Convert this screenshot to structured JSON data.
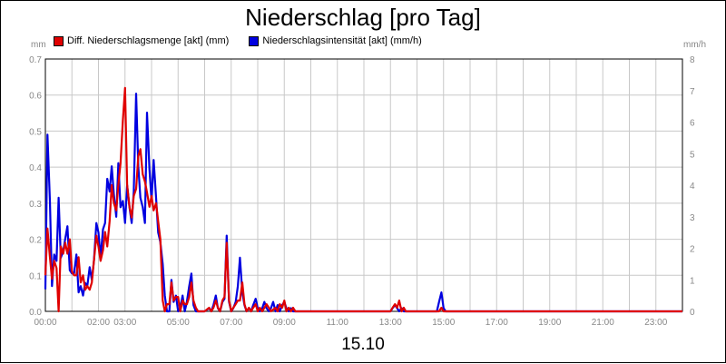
{
  "chart_data": {
    "type": "line",
    "title": "Niederschlag [pro Tag]",
    "xlabel": "15.10",
    "left_axis_unit": "mm",
    "right_axis_unit": "mm/h",
    "grid": true,
    "legend_position": "top-left",
    "x_range_hours": [
      0,
      24
    ],
    "y_left_range": [
      0,
      0.7
    ],
    "y_right_range": [
      0,
      8
    ],
    "x_tick_labels": [
      "00:00",
      "02:00",
      "03:00",
      "05:00",
      "07:00",
      "09:00",
      "11:00",
      "13:00",
      "15:00",
      "17:00",
      "19:00",
      "21:00",
      "23:00"
    ],
    "y_left_tick_labels": [
      "0.0",
      "0.1",
      "0.2",
      "0.3",
      "0.4",
      "0.5",
      "0.6",
      "0.7"
    ],
    "y_right_tick_labels": [
      "0",
      "1",
      "2",
      "3",
      "4",
      "5",
      "6",
      "7",
      "8"
    ],
    "series": [
      {
        "name": "Diff. Niederschlagsmenge [akt] (mm)",
        "color": "#e00000",
        "axis": "left",
        "points": [
          [
            0.0,
            0.1
          ],
          [
            0.08,
            0.23
          ],
          [
            0.17,
            0.15
          ],
          [
            0.25,
            0.09
          ],
          [
            0.33,
            0.14
          ],
          [
            0.42,
            0.12
          ],
          [
            0.5,
            0.0
          ],
          [
            0.58,
            0.18
          ],
          [
            0.67,
            0.16
          ],
          [
            0.75,
            0.19
          ],
          [
            0.83,
            0.16
          ],
          [
            0.92,
            0.2
          ],
          [
            1.0,
            0.11
          ],
          [
            1.08,
            0.1
          ],
          [
            1.17,
            0.1
          ],
          [
            1.25,
            0.15
          ],
          [
            1.33,
            0.08
          ],
          [
            1.42,
            0.1
          ],
          [
            1.5,
            0.06
          ],
          [
            1.58,
            0.07
          ],
          [
            1.67,
            0.06
          ],
          [
            1.75,
            0.08
          ],
          [
            1.83,
            0.14
          ],
          [
            1.92,
            0.21
          ],
          [
            2.0,
            0.18
          ],
          [
            2.08,
            0.14
          ],
          [
            2.17,
            0.17
          ],
          [
            2.25,
            0.22
          ],
          [
            2.33,
            0.18
          ],
          [
            2.42,
            0.25
          ],
          [
            2.5,
            0.35
          ],
          [
            2.58,
            0.3
          ],
          [
            2.67,
            0.28
          ],
          [
            2.75,
            0.35
          ],
          [
            2.83,
            0.41
          ],
          [
            2.92,
            0.53
          ],
          [
            3.0,
            0.62
          ],
          [
            3.08,
            0.35
          ],
          [
            3.17,
            0.29
          ],
          [
            3.25,
            0.26
          ],
          [
            3.33,
            0.32
          ],
          [
            3.42,
            0.34
          ],
          [
            3.5,
            0.43
          ],
          [
            3.58,
            0.45
          ],
          [
            3.67,
            0.38
          ],
          [
            3.75,
            0.36
          ],
          [
            3.83,
            0.33
          ],
          [
            3.92,
            0.29
          ],
          [
            4.0,
            0.32
          ],
          [
            4.08,
            0.28
          ],
          [
            4.17,
            0.3
          ],
          [
            4.25,
            0.25
          ],
          [
            4.33,
            0.2
          ],
          [
            4.42,
            0.03
          ],
          [
            4.5,
            0.0
          ],
          [
            4.58,
            0.02
          ],
          [
            4.67,
            0.02
          ],
          [
            4.75,
            0.08
          ],
          [
            4.83,
            0.03
          ],
          [
            4.92,
            0.04
          ],
          [
            5.0,
            0.04
          ],
          [
            5.08,
            0.0
          ],
          [
            5.17,
            0.03
          ],
          [
            5.25,
            0.02
          ],
          [
            5.33,
            0.02
          ],
          [
            5.42,
            0.04
          ],
          [
            5.5,
            0.08
          ],
          [
            5.58,
            0.03
          ],
          [
            5.67,
            0.01
          ],
          [
            5.75,
            0.0
          ],
          [
            6.0,
            0.0
          ],
          [
            6.17,
            0.01
          ],
          [
            6.25,
            0.0
          ],
          [
            6.33,
            0.01
          ],
          [
            6.42,
            0.03
          ],
          [
            6.5,
            0.01
          ],
          [
            6.58,
            0.0
          ],
          [
            6.67,
            0.03
          ],
          [
            6.75,
            0.04
          ],
          [
            6.83,
            0.19
          ],
          [
            6.92,
            0.03
          ],
          [
            7.0,
            0.0
          ],
          [
            7.08,
            0.01
          ],
          [
            7.17,
            0.02
          ],
          [
            7.25,
            0.03
          ],
          [
            7.33,
            0.03
          ],
          [
            7.42,
            0.08
          ],
          [
            7.5,
            0.02
          ],
          [
            7.58,
            0.0
          ],
          [
            7.67,
            0.01
          ],
          [
            7.75,
            0.0
          ],
          [
            7.83,
            0.01
          ],
          [
            7.92,
            0.02
          ],
          [
            8.0,
            0.0
          ],
          [
            8.08,
            0.01
          ],
          [
            8.17,
            0.0
          ],
          [
            8.33,
            0.02
          ],
          [
            8.42,
            0.01
          ],
          [
            8.5,
            0.0
          ],
          [
            8.67,
            0.01
          ],
          [
            8.75,
            0.0
          ],
          [
            8.83,
            0.02
          ],
          [
            8.92,
            0.01
          ],
          [
            9.0,
            0.03
          ],
          [
            9.08,
            0.0
          ],
          [
            9.17,
            0.01
          ],
          [
            9.25,
            0.0
          ],
          [
            9.33,
            0.01
          ],
          [
            9.42,
            0.0
          ],
          [
            13.0,
            0.0
          ],
          [
            13.08,
            0.01
          ],
          [
            13.17,
            0.02
          ],
          [
            13.25,
            0.01
          ],
          [
            13.33,
            0.03
          ],
          [
            13.42,
            0.0
          ],
          [
            13.5,
            0.01
          ],
          [
            13.58,
            0.0
          ],
          [
            14.83,
            0.0
          ],
          [
            14.92,
            0.01
          ],
          [
            15.0,
            0.0
          ],
          [
            24.0,
            0.0
          ]
        ]
      },
      {
        "name": "Niederschlagsintensität [akt] (mm/h)",
        "color": "#0000e0",
        "axis": "right",
        "points": [
          [
            0.0,
            0.7
          ],
          [
            0.08,
            5.6
          ],
          [
            0.17,
            3.5
          ],
          [
            0.25,
            0.8
          ],
          [
            0.33,
            1.8
          ],
          [
            0.42,
            1.6
          ],
          [
            0.5,
            3.6
          ],
          [
            0.58,
            1.7
          ],
          [
            0.67,
            1.9
          ],
          [
            0.75,
            2.3
          ],
          [
            0.83,
            2.7
          ],
          [
            0.92,
            1.3
          ],
          [
            1.0,
            1.2
          ],
          [
            1.08,
            1.2
          ],
          [
            1.17,
            1.8
          ],
          [
            1.25,
            0.6
          ],
          [
            1.33,
            0.8
          ],
          [
            1.42,
            0.5
          ],
          [
            1.5,
            0.9
          ],
          [
            1.58,
            0.8
          ],
          [
            1.67,
            1.4
          ],
          [
            1.75,
            1.0
          ],
          [
            1.83,
            1.6
          ],
          [
            1.92,
            2.8
          ],
          [
            2.0,
            2.5
          ],
          [
            2.08,
            1.7
          ],
          [
            2.17,
            2.6
          ],
          [
            2.25,
            2.8
          ],
          [
            2.33,
            4.2
          ],
          [
            2.42,
            3.8
          ],
          [
            2.5,
            4.6
          ],
          [
            2.58,
            3.7
          ],
          [
            2.67,
            3.0
          ],
          [
            2.75,
            4.7
          ],
          [
            2.83,
            3.3
          ],
          [
            2.92,
            3.5
          ],
          [
            3.0,
            2.8
          ],
          [
            3.08,
            4.0
          ],
          [
            3.17,
            3.3
          ],
          [
            3.25,
            2.8
          ],
          [
            3.33,
            3.8
          ],
          [
            3.42,
            6.9
          ],
          [
            3.5,
            4.6
          ],
          [
            3.58,
            3.6
          ],
          [
            3.67,
            3.3
          ],
          [
            3.75,
            2.8
          ],
          [
            3.83,
            6.3
          ],
          [
            3.92,
            4.5
          ],
          [
            4.0,
            3.5
          ],
          [
            4.08,
            4.8
          ],
          [
            4.17,
            3.6
          ],
          [
            4.25,
            2.5
          ],
          [
            4.33,
            2.2
          ],
          [
            4.42,
            1.5
          ],
          [
            4.5,
            0.5
          ],
          [
            4.58,
            0.0
          ],
          [
            4.67,
            0.0
          ],
          [
            4.75,
            1.0
          ],
          [
            4.83,
            0.3
          ],
          [
            4.92,
            0.5
          ],
          [
            5.0,
            0.0
          ],
          [
            5.08,
            0.1
          ],
          [
            5.17,
            0.5
          ],
          [
            5.25,
            0.0
          ],
          [
            5.33,
            0.3
          ],
          [
            5.42,
            0.8
          ],
          [
            5.5,
            1.2
          ],
          [
            5.58,
            0.2
          ],
          [
            5.67,
            0.0
          ],
          [
            6.0,
            0.0
          ],
          [
            6.17,
            0.1
          ],
          [
            6.25,
            0.0
          ],
          [
            6.33,
            0.2
          ],
          [
            6.42,
            0.5
          ],
          [
            6.5,
            0.1
          ],
          [
            6.58,
            0.0
          ],
          [
            6.67,
            0.3
          ],
          [
            6.75,
            0.4
          ],
          [
            6.83,
            2.4
          ],
          [
            6.92,
            0.3
          ],
          [
            7.0,
            0.0
          ],
          [
            7.08,
            0.1
          ],
          [
            7.17,
            0.3
          ],
          [
            7.25,
            0.8
          ],
          [
            7.33,
            1.7
          ],
          [
            7.42,
            0.6
          ],
          [
            7.5,
            0.2
          ],
          [
            7.58,
            0.0
          ],
          [
            7.67,
            0.1
          ],
          [
            7.75,
            0.0
          ],
          [
            7.83,
            0.2
          ],
          [
            7.92,
            0.4
          ],
          [
            8.0,
            0.1
          ],
          [
            8.08,
            0.0
          ],
          [
            8.17,
            0.1
          ],
          [
            8.25,
            0.3
          ],
          [
            8.33,
            0.1
          ],
          [
            8.42,
            0.0
          ],
          [
            8.5,
            0.1
          ],
          [
            8.58,
            0.3
          ],
          [
            8.67,
            0.0
          ],
          [
            8.75,
            0.2
          ],
          [
            8.83,
            0.0
          ],
          [
            8.92,
            0.2
          ],
          [
            9.0,
            0.3
          ],
          [
            9.08,
            0.1
          ],
          [
            9.17,
            0.0
          ],
          [
            9.25,
            0.1
          ],
          [
            9.33,
            0.0
          ],
          [
            13.0,
            0.0
          ],
          [
            13.08,
            0.1
          ],
          [
            13.17,
            0.2
          ],
          [
            13.25,
            0.1
          ],
          [
            13.33,
            0.0
          ],
          [
            13.42,
            0.1
          ],
          [
            13.5,
            0.0
          ],
          [
            14.75,
            0.0
          ],
          [
            14.83,
            0.3
          ],
          [
            14.92,
            0.6
          ],
          [
            15.0,
            0.1
          ],
          [
            15.08,
            0.0
          ],
          [
            24.0,
            0.0
          ]
        ]
      }
    ]
  }
}
